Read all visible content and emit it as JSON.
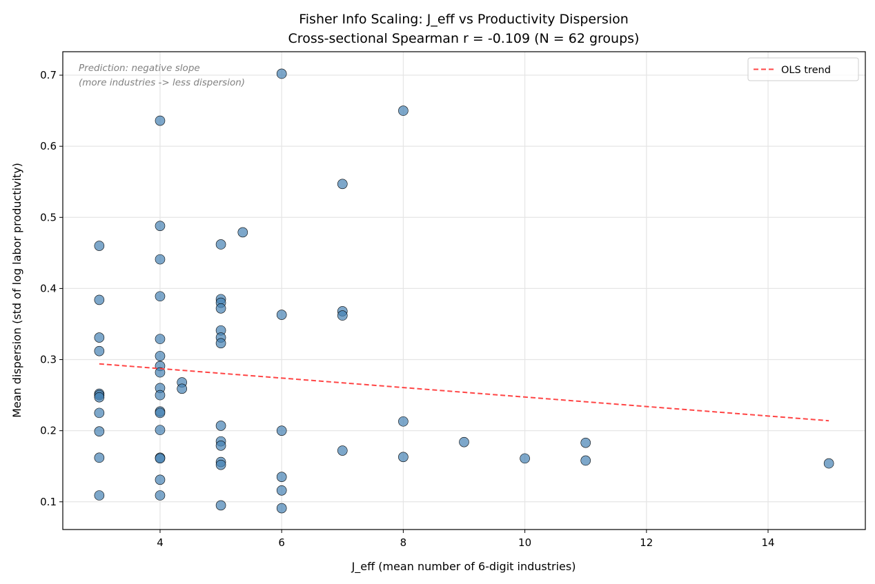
{
  "chart_data": {
    "type": "scatter",
    "title": "Fisher Info Scaling: J_eff vs Productivity Dispersion",
    "subtitle": "Cross-sectional Spearman r = -0.109 (N = 62 groups)",
    "xlabel": "J_eff (mean number of 6-digit industries)",
    "ylabel": "Mean dispersion (std of log labor productivity)",
    "xlim": [
      2.4,
      15.6
    ],
    "ylim": [
      0.061,
      0.733
    ],
    "xticks": [
      4,
      6,
      8,
      10,
      12,
      14
    ],
    "yticks": [
      0.1,
      0.2,
      0.3,
      0.4,
      0.5,
      0.6,
      0.7
    ],
    "grid": true,
    "legend": {
      "position": "top-right",
      "entries": [
        "OLS trend"
      ]
    },
    "annotation": [
      "Prediction: negative slope",
      "(more industries -> less dispersion)"
    ],
    "colors": {
      "points": "#4682b4",
      "trend": "#ff4444"
    },
    "trend": {
      "name": "OLS trend",
      "x": [
        3,
        15
      ],
      "y": [
        0.294,
        0.214
      ]
    },
    "points": [
      [
        3,
        0.46
      ],
      [
        3,
        0.384
      ],
      [
        3,
        0.331
      ],
      [
        3,
        0.312
      ],
      [
        3,
        0.252
      ],
      [
        3,
        0.25
      ],
      [
        3,
        0.247
      ],
      [
        3,
        0.225
      ],
      [
        3,
        0.199
      ],
      [
        3,
        0.162
      ],
      [
        3,
        0.109
      ],
      [
        4,
        0.636
      ],
      [
        4,
        0.488
      ],
      [
        4,
        0.441
      ],
      [
        4,
        0.389
      ],
      [
        4,
        0.329
      ],
      [
        4,
        0.305
      ],
      [
        4,
        0.291
      ],
      [
        4,
        0.282
      ],
      [
        4,
        0.26
      ],
      [
        4,
        0.25
      ],
      [
        4,
        0.227
      ],
      [
        4,
        0.225
      ],
      [
        4,
        0.201
      ],
      [
        4,
        0.162
      ],
      [
        4,
        0.161
      ],
      [
        4,
        0.131
      ],
      [
        4,
        0.109
      ],
      [
        4.36,
        0.268
      ],
      [
        4.36,
        0.259
      ],
      [
        5,
        0.462
      ],
      [
        5,
        0.385
      ],
      [
        5,
        0.38
      ],
      [
        5,
        0.372
      ],
      [
        5,
        0.341
      ],
      [
        5,
        0.331
      ],
      [
        5,
        0.323
      ],
      [
        5,
        0.207
      ],
      [
        5,
        0.185
      ],
      [
        5,
        0.179
      ],
      [
        5,
        0.156
      ],
      [
        5,
        0.152
      ],
      [
        5,
        0.095
      ],
      [
        5.36,
        0.479
      ],
      [
        6,
        0.702
      ],
      [
        6,
        0.363
      ],
      [
        6,
        0.2
      ],
      [
        6,
        0.135
      ],
      [
        6,
        0.116
      ],
      [
        6,
        0.091
      ],
      [
        7,
        0.547
      ],
      [
        7,
        0.368
      ],
      [
        7,
        0.362
      ],
      [
        7,
        0.172
      ],
      [
        8,
        0.65
      ],
      [
        8,
        0.213
      ],
      [
        8,
        0.163
      ],
      [
        9,
        0.184
      ],
      [
        10,
        0.161
      ],
      [
        11,
        0.183
      ],
      [
        11,
        0.158
      ],
      [
        15,
        0.154
      ]
    ]
  }
}
